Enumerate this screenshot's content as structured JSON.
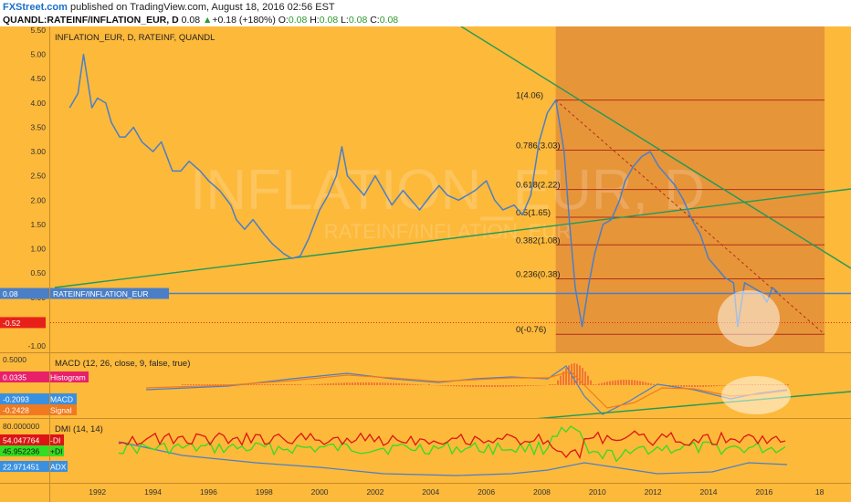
{
  "header": {
    "brand": "FXStreet.com",
    "published_text": " published on TradingView.com, August 18, 2016 02:56 EST",
    "symbol": "QUANDL:RATEINF/INFLATION_EUR, D",
    "last": "0.08",
    "change_arrow": "▲",
    "change": "+0.18 (+180%)",
    "o_label": "O:",
    "o": "0.08",
    "h_label": "H:",
    "h": "0.08",
    "l_label": "L:",
    "l": "0.08",
    "c_label": "C:",
    "c": "0.08"
  },
  "colors": {
    "panel_bg": "#fdb93a",
    "shaded_bg": "#e4913a",
    "price_line": "#4a7fc8",
    "trend_green": "#1f9a5a",
    "fib_red": "#b0301a",
    "minus_di": "#dd1414",
    "plus_di": "#33dd22",
    "adx": "#4a7fc8",
    "histogram": "#e33333",
    "signal": "#f07a20",
    "marker_red": "#e8201a"
  },
  "main_panel": {
    "title": "INFLATION_EUR, D, RATEINF, QUANDL",
    "watermark_big": "INFLATION_EUR, D",
    "watermark_small": "RATEINF/INFLATION_EUR",
    "price_label": "0.08",
    "price_label_name": "RATEINF/INFLATION_EUR",
    "red_marker_label": "-0.52",
    "fib_levels": [
      {
        "label": "1(4.06)",
        "value": 4.06
      },
      {
        "label": "0.786(3.03)",
        "value": 3.03
      },
      {
        "label": "0.618(2.22)",
        "value": 2.22
      },
      {
        "label": "0.5(1.65)",
        "value": 1.65
      },
      {
        "label": "0.382(1.08)",
        "value": 1.08
      },
      {
        "label": "0.236(0.38)",
        "value": 0.38
      },
      {
        "label": "0(-0.76)",
        "value": -0.76
      }
    ],
    "y_ticks": [
      "5.50",
      "5.00",
      "4.50",
      "4.00",
      "3.50",
      "3.00",
      "2.50",
      "2.00",
      "1.50",
      "1.00",
      "0.50",
      "0.00",
      "-0.50",
      "-1.00"
    ]
  },
  "macd_panel": {
    "title": "MACD (12, 26, close, 9, false, true)",
    "top_tick": "0.5000",
    "histogram": {
      "value": "0.0335",
      "name": "Histogram"
    },
    "macd": {
      "value": "-0.2093",
      "name": "MACD"
    },
    "signal": {
      "value": "-0.2428",
      "name": "Signal"
    }
  },
  "dmi_panel": {
    "title": "DMI (14, 14)",
    "top_tick": "80.000000",
    "minus_di": {
      "value": "54.047764",
      "name": "-DI"
    },
    "plus_di": {
      "value": "45.952236",
      "name": "+DI"
    },
    "adx": {
      "value": "22.971451",
      "name": "ADX"
    }
  },
  "x_axis": {
    "ticks": [
      "1992",
      "1994",
      "1996",
      "1998",
      "2000",
      "2002",
      "2004",
      "2006",
      "2008",
      "2010",
      "2012",
      "2014",
      "2016",
      "18"
    ]
  },
  "chart_data": {
    "type": "line",
    "title": "INFLATION_EUR, D, RATEINF, QUANDL",
    "xlabel": "",
    "ylabel": "",
    "ylim": [
      -1.0,
      5.5
    ],
    "xlim": [
      1990.3,
      2018.8
    ],
    "grid": false,
    "series": [
      {
        "name": "RATEINF/INFLATION_EUR",
        "x": [
          1991.0,
          1991.3,
          1991.5,
          1991.8,
          1992.0,
          1992.3,
          1992.5,
          1992.8,
          1993.0,
          1993.3,
          1993.6,
          1994.0,
          1994.3,
          1994.7,
          1995.0,
          1995.3,
          1995.7,
          1996.0,
          1996.4,
          1996.8,
          1997.0,
          1997.3,
          1997.6,
          1998.0,
          1998.3,
          1998.7,
          1999.0,
          1999.3,
          1999.6,
          2000.0,
          2000.3,
          2000.6,
          2000.8,
          2001.0,
          2001.3,
          2001.6,
          2002.0,
          2002.3,
          2002.6,
          2003.0,
          2003.3,
          2003.6,
          2004.0,
          2004.3,
          2004.6,
          2005.0,
          2005.3,
          2005.6,
          2006.0,
          2006.3,
          2006.6,
          2007.0,
          2007.3,
          2007.6,
          2007.9,
          2008.2,
          2008.5,
          2008.8,
          2009.0,
          2009.2,
          2009.45,
          2009.7,
          2009.9,
          2010.2,
          2010.5,
          2010.8,
          2011.0,
          2011.3,
          2011.6,
          2011.9,
          2012.2,
          2012.5,
          2012.8,
          2013.1,
          2013.4,
          2013.7,
          2014.0,
          2014.3,
          2014.6,
          2014.9,
          2015.05,
          2015.3,
          2015.6,
          2015.9,
          2016.1,
          2016.3,
          2016.5
        ],
        "y": [
          3.9,
          4.2,
          5.0,
          3.9,
          4.1,
          4.0,
          3.6,
          3.3,
          3.3,
          3.5,
          3.2,
          3.0,
          3.2,
          2.6,
          2.6,
          2.8,
          2.6,
          2.4,
          2.2,
          1.9,
          1.6,
          1.4,
          1.6,
          1.3,
          1.1,
          0.9,
          0.8,
          0.85,
          1.2,
          1.8,
          2.1,
          2.5,
          3.1,
          2.5,
          2.3,
          2.1,
          2.5,
          2.2,
          1.9,
          2.2,
          2.0,
          1.8,
          2.1,
          2.3,
          2.1,
          2.0,
          2.1,
          2.2,
          2.4,
          2.0,
          1.8,
          1.9,
          1.7,
          2.1,
          3.2,
          3.8,
          4.06,
          3.0,
          1.5,
          0.2,
          -0.6,
          0.3,
          0.9,
          1.5,
          1.6,
          2.0,
          2.4,
          2.7,
          2.9,
          3.0,
          2.7,
          2.5,
          2.3,
          2.0,
          1.6,
          1.3,
          0.8,
          0.6,
          0.4,
          0.3,
          -0.6,
          0.3,
          0.2,
          0.1,
          -0.1,
          0.2,
          0.1
        ]
      }
    ]
  }
}
